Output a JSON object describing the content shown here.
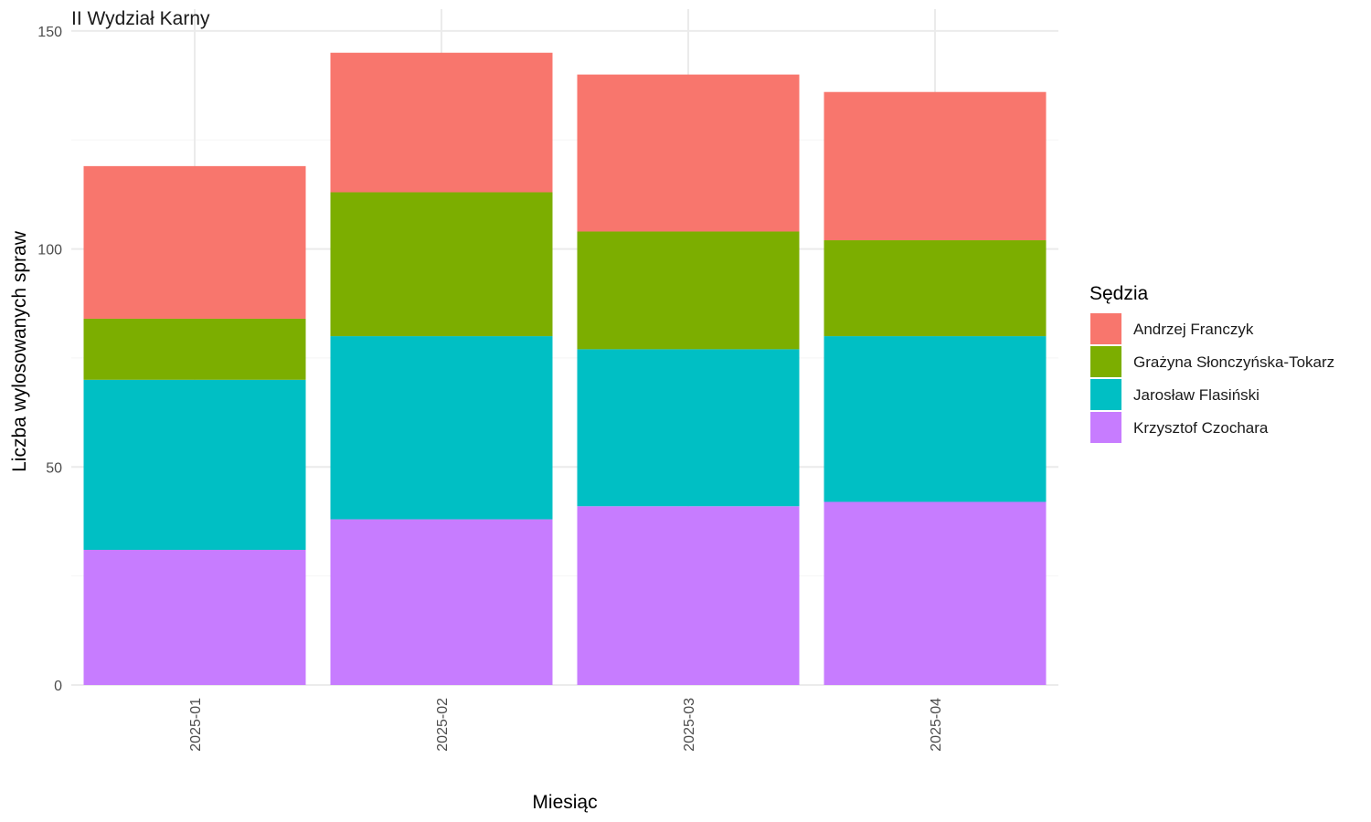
{
  "chart_data": {
    "type": "bar",
    "stacked": true,
    "facet_title": "II Wydział Karny",
    "xlabel": "Miesiąc",
    "ylabel": "Liczba wylosowanych spraw",
    "categories": [
      "2025-01",
      "2025-02",
      "2025-03",
      "2025-04"
    ],
    "ylim": [
      0,
      150
    ],
    "yticks": [
      0,
      50,
      100,
      150
    ],
    "grid": true,
    "legend": {
      "title": "Sędzia",
      "position": "right"
    },
    "series": [
      {
        "name": "Krzysztof Czochara",
        "color": "#C77CFF",
        "values": [
          31,
          38,
          41,
          42
        ]
      },
      {
        "name": "Jarosław Flasiński",
        "color": "#00BFC4",
        "values": [
          39,
          42,
          36,
          38
        ]
      },
      {
        "name": "Grażyna Słonczyńska-Tokarz",
        "color": "#7CAE00",
        "values": [
          14,
          33,
          27,
          22
        ]
      },
      {
        "name": "Andrzej Franczyk",
        "color": "#F8766D",
        "values": [
          35,
          32,
          36,
          34
        ]
      }
    ],
    "legend_order": [
      "Andrzej Franczyk",
      "Grażyna Słonczyńska-Tokarz",
      "Jarosław Flasiński",
      "Krzysztof Czochara"
    ]
  }
}
